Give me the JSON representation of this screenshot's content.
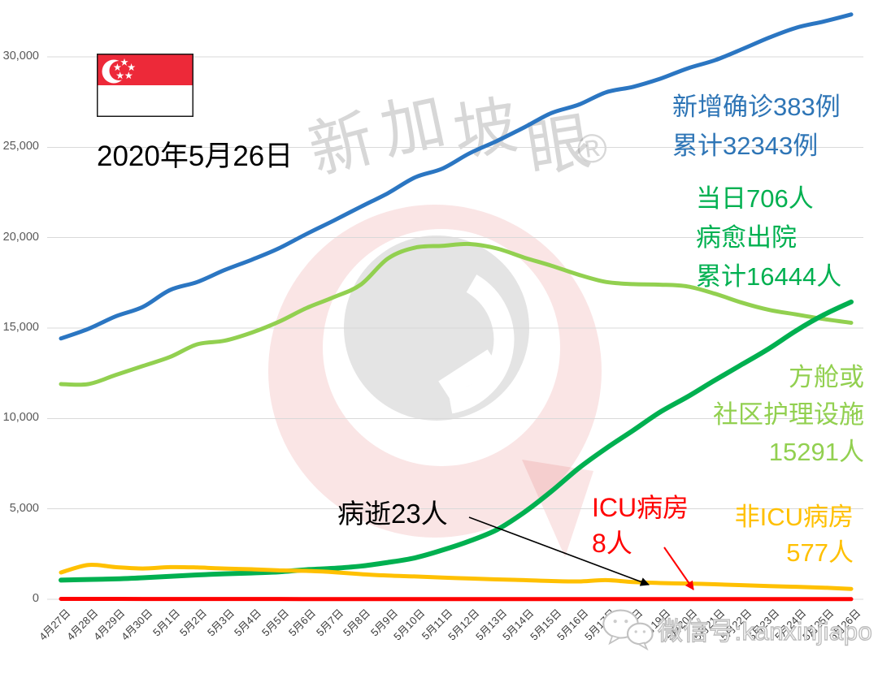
{
  "date_label": "2020年5月26日",
  "watermark": {
    "brand": "新加坡眼",
    "reg": "®",
    "wechat": "微信号:kanxinjiapo"
  },
  "annotations": {
    "confirmed": {
      "line1": "新增确诊383例",
      "line2": "累计32343例",
      "color": "#2E75B6"
    },
    "recovered": {
      "line1": "当日706人",
      "line2": "病愈出院",
      "line3": "累计16444人",
      "color": "#00B050"
    },
    "community": {
      "line1": "方舱或",
      "line2": "社区护理设施",
      "line3": "15291人",
      "color": "#92D050"
    },
    "deaths": {
      "text": "病逝23人",
      "color": "#000000"
    },
    "icu": {
      "line1": "ICU病房",
      "line2": "8人",
      "color": "#FF0000"
    },
    "non_icu": {
      "line1": "非ICU病房",
      "line2": "577人",
      "color": "#FFC000"
    }
  },
  "chart_data": {
    "type": "line",
    "title": "",
    "xlabel": "",
    "ylabel": "",
    "ylim": [
      0,
      32500
    ],
    "yticks": [
      0,
      5000,
      10000,
      15000,
      20000,
      25000,
      30000
    ],
    "grid": true,
    "legend": "none",
    "categories": [
      "4月27日",
      "4月28日",
      "4月29日",
      "4月30日",
      "5月1日",
      "5月2日",
      "5月3日",
      "5月4日",
      "5月5日",
      "5月6日",
      "5月7日",
      "5月8日",
      "5月9日",
      "5月10日",
      "5月11日",
      "5月12日",
      "5月13日",
      "5月14日",
      "5月15日",
      "5月16日",
      "5月17日",
      "5月18日",
      "5月19日",
      "5月20日",
      "5月21日",
      "5月22日",
      "5月23日",
      "5月24日",
      "5月25日",
      "5月26日"
    ],
    "series": [
      {
        "name": "累计确诊",
        "color": "#2B76C2",
        "width": 5,
        "values": [
          14423,
          14951,
          15641,
          16169,
          17101,
          17548,
          18205,
          18778,
          19410,
          20198,
          20939,
          21707,
          22460,
          23336,
          23822,
          24671,
          25346,
          26098,
          26891,
          27356,
          28038,
          28343,
          28794,
          29364,
          29812,
          30426,
          31068,
          31616,
          31960,
          32343
        ]
      },
      {
        "name": "方舱或社区护理设施",
        "color": "#92D050",
        "width": 5,
        "values": [
          11900,
          11900,
          12400,
          12900,
          13400,
          14100,
          14300,
          14750,
          15350,
          16100,
          16700,
          17400,
          18850,
          19450,
          19550,
          19650,
          19400,
          18900,
          18450,
          17950,
          17550,
          17430,
          17400,
          17300,
          16900,
          16400,
          16000,
          15750,
          15500,
          15291
        ]
      },
      {
        "name": "累计病愈出院",
        "color": "#00B050",
        "width": 6,
        "values": [
          1060,
          1095,
          1128,
          1188,
          1268,
          1347,
          1408,
          1457,
          1519,
          1634,
          1712,
          1833,
          2040,
          2296,
          2721,
          3225,
          3851,
          4809,
          5973,
          7248,
          8342,
          9340,
          10365,
          11207,
          12117,
          12995,
          13882,
          14876,
          15738,
          16444
        ]
      },
      {
        "name": "非ICU病房",
        "color": "#FFC000",
        "width": 5,
        "values": [
          1480,
          1900,
          1780,
          1700,
          1780,
          1760,
          1700,
          1660,
          1600,
          1570,
          1500,
          1390,
          1310,
          1260,
          1200,
          1150,
          1100,
          1060,
          1010,
          990,
          1060,
          950,
          900,
          870,
          830,
          780,
          730,
          690,
          640,
          577
        ]
      },
      {
        "name": "病逝",
        "color": "#000000",
        "width": 2.5,
        "values": [
          14,
          14,
          15,
          15,
          16,
          16,
          17,
          18,
          18,
          18,
          19,
          20,
          20,
          21,
          21,
          21,
          21,
          21,
          22,
          22,
          22,
          22,
          22,
          23,
          23,
          23,
          23,
          23,
          23,
          23
        ]
      },
      {
        "name": "ICU病房",
        "color": "#FF0000",
        "width": 5,
        "values": [
          23,
          22,
          21,
          20,
          19,
          19,
          18,
          17,
          16,
          15,
          14,
          13,
          12,
          12,
          11,
          10,
          10,
          9,
          9,
          8,
          8,
          8,
          8,
          8,
          8,
          8,
          8,
          8,
          8,
          8
        ]
      }
    ]
  }
}
